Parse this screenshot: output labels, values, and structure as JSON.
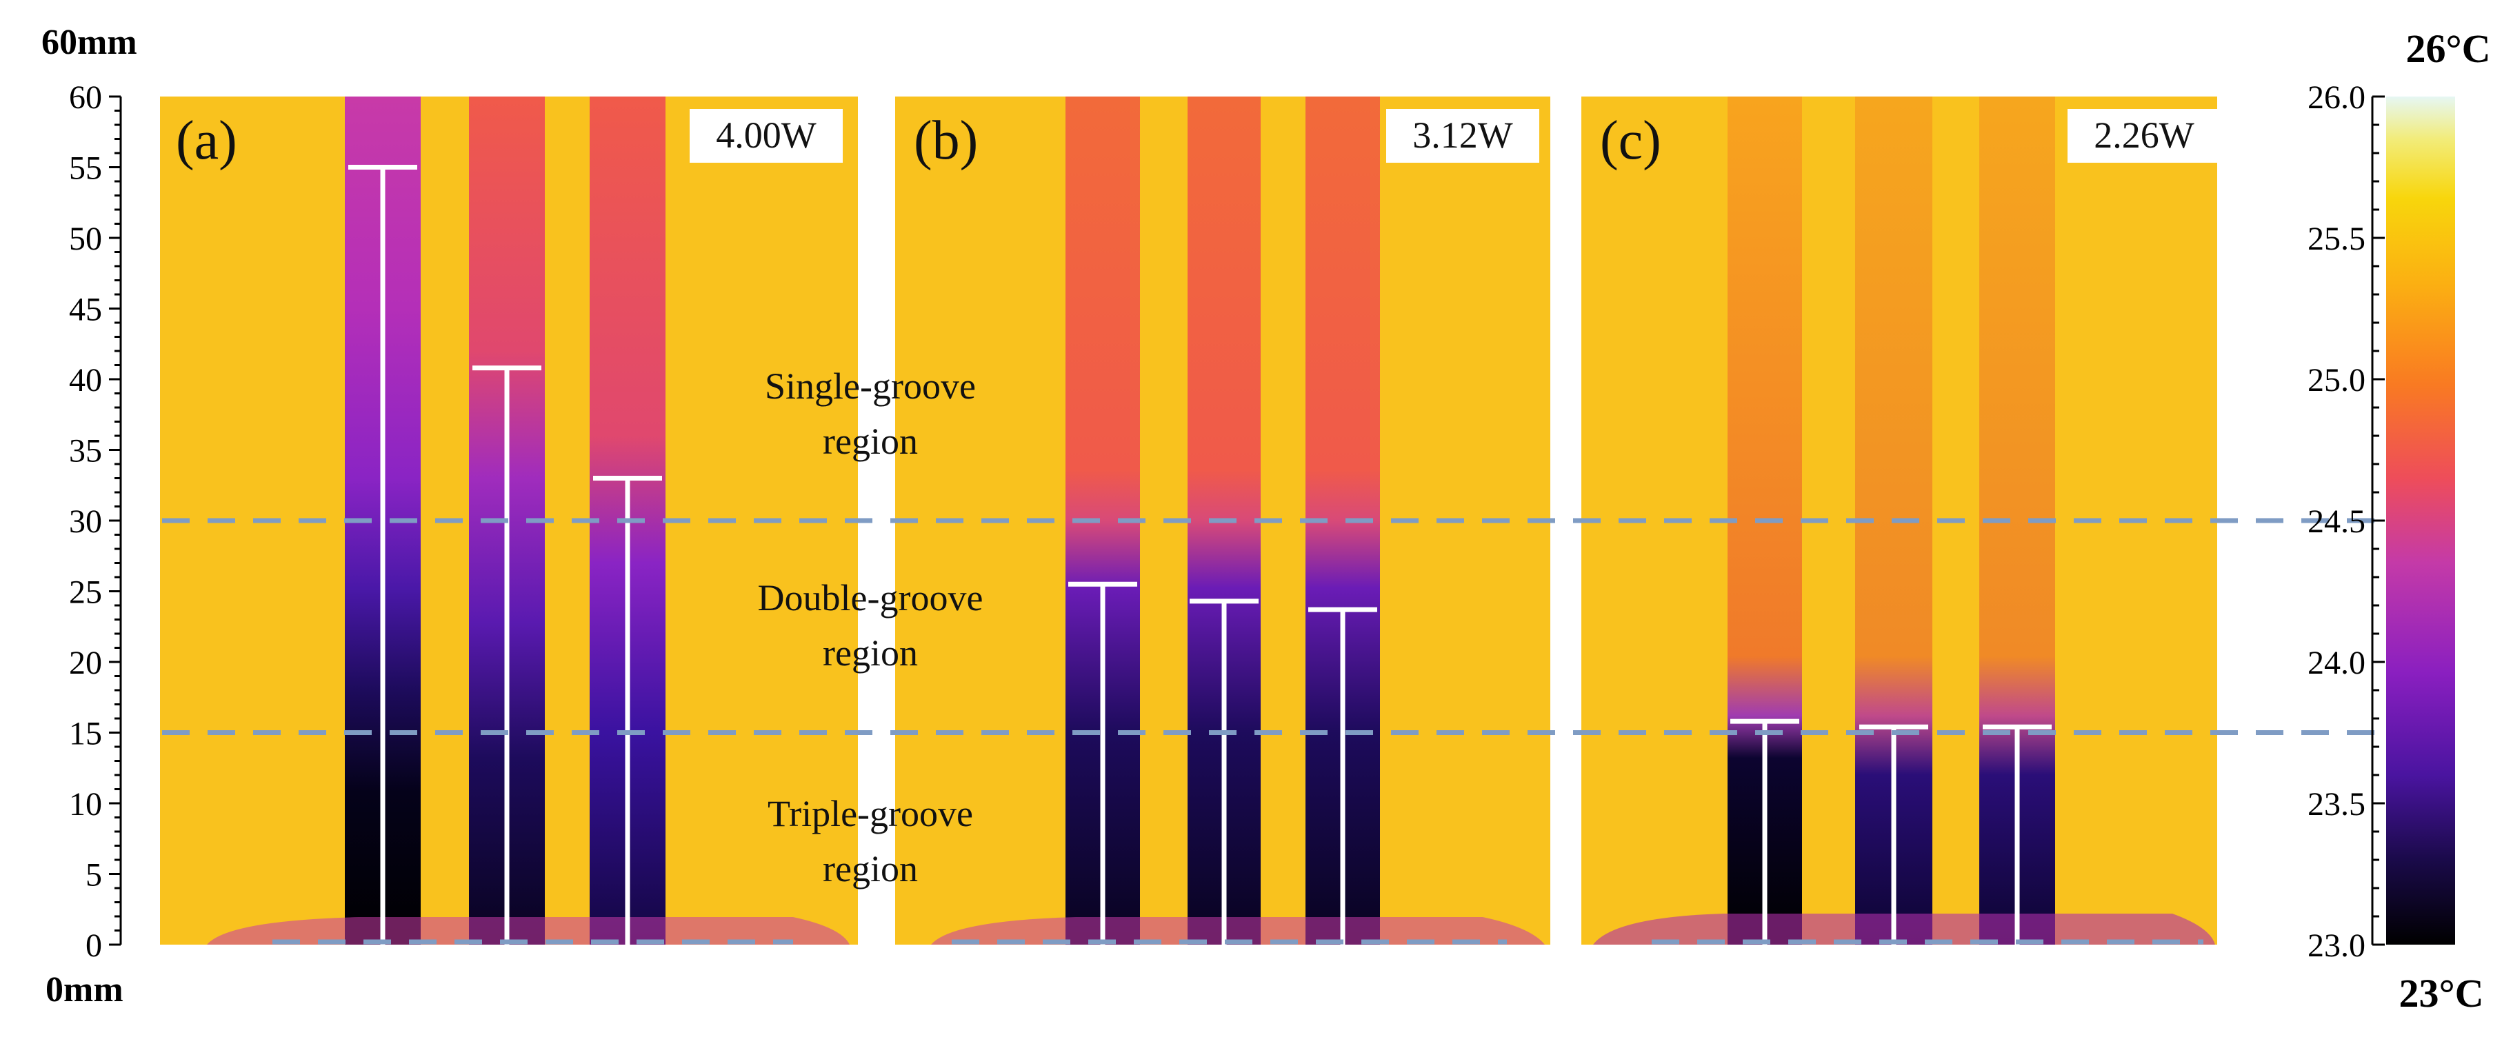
{
  "axis": {
    "top_label": "60mm",
    "bottom_label": "0mm",
    "ticks": [
      "0",
      "5",
      "10",
      "15",
      "20",
      "25",
      "30",
      "35",
      "40",
      "45",
      "50",
      "55",
      "60"
    ],
    "range_mm": [
      0,
      60
    ]
  },
  "panels": [
    {
      "label": "(a)",
      "power": "4.00W",
      "bars": [
        {
          "position": "left",
          "height_mm": 55.0
        },
        {
          "position": "middle",
          "height_mm": 40.8
        },
        {
          "position": "right",
          "height_mm": 33.0
        }
      ]
    },
    {
      "label": "(b)",
      "power": "3.12W",
      "bars": [
        {
          "position": "left",
          "height_mm": 25.5
        },
        {
          "position": "middle",
          "height_mm": 24.3
        },
        {
          "position": "right",
          "height_mm": 23.7
        }
      ]
    },
    {
      "label": "(c)",
      "power": "2.26W",
      "bars": [
        {
          "position": "left",
          "height_mm": 15.8
        },
        {
          "position": "middle",
          "height_mm": 15.4
        },
        {
          "position": "right",
          "height_mm": 15.4
        }
      ]
    }
  ],
  "regions": {
    "single": [
      "Single-groove",
      "region"
    ],
    "double": [
      "Double-groove",
      "region"
    ],
    "triple": [
      "Triple-groove",
      "region"
    ]
  },
  "region_boundaries_mm": [
    15,
    30
  ],
  "colorbar": {
    "top_label": "26°C",
    "bottom_label": "23°C",
    "ticks": [
      "23.0",
      "23.5",
      "24.0",
      "24.5",
      "25.0",
      "25.5",
      "26.0"
    ],
    "range_c": [
      23.0,
      26.0
    ],
    "colors": [
      "#000000",
      "#1a0a4a",
      "#4a14a0",
      "#8a1fc0",
      "#c43aa8",
      "#ee4d5a",
      "#f97a22",
      "#fbb012",
      "#f8d60c",
      "#f2ec7a",
      "#e6f7f4"
    ]
  },
  "colors": {
    "background_yellow": "#f9c21e",
    "channel_red": "#f05a4a",
    "channel_orange": "#f58a2a",
    "liquid_dark": "#14063a",
    "dashed_line": "#7f9cc4",
    "marker": "#ffffff"
  }
}
